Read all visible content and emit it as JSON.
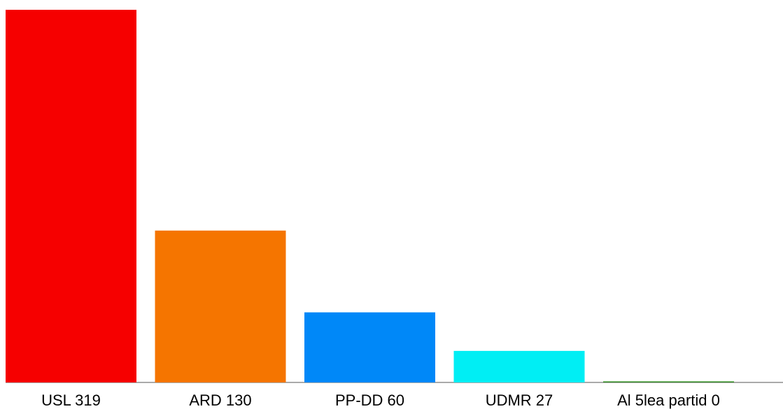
{
  "chart_data": {
    "type": "bar",
    "categories": [
      "USL",
      "ARD",
      "PP-DD",
      "UDMR",
      "Al 5lea partid"
    ],
    "values": [
      319,
      130,
      60,
      27,
      0
    ],
    "labels": [
      "USL 319",
      "ARD 130",
      "PP-DD 60",
      "UDMR 27",
      "Al 5lea partid 0"
    ],
    "colors": [
      "#f60000",
      "#f57500",
      "#0088f8",
      "#00eef4",
      "#2e8b1e"
    ],
    "title": "",
    "xlabel": "",
    "ylabel": "",
    "ylim": [
      0,
      319
    ],
    "grid": false,
    "legend": "none"
  }
}
